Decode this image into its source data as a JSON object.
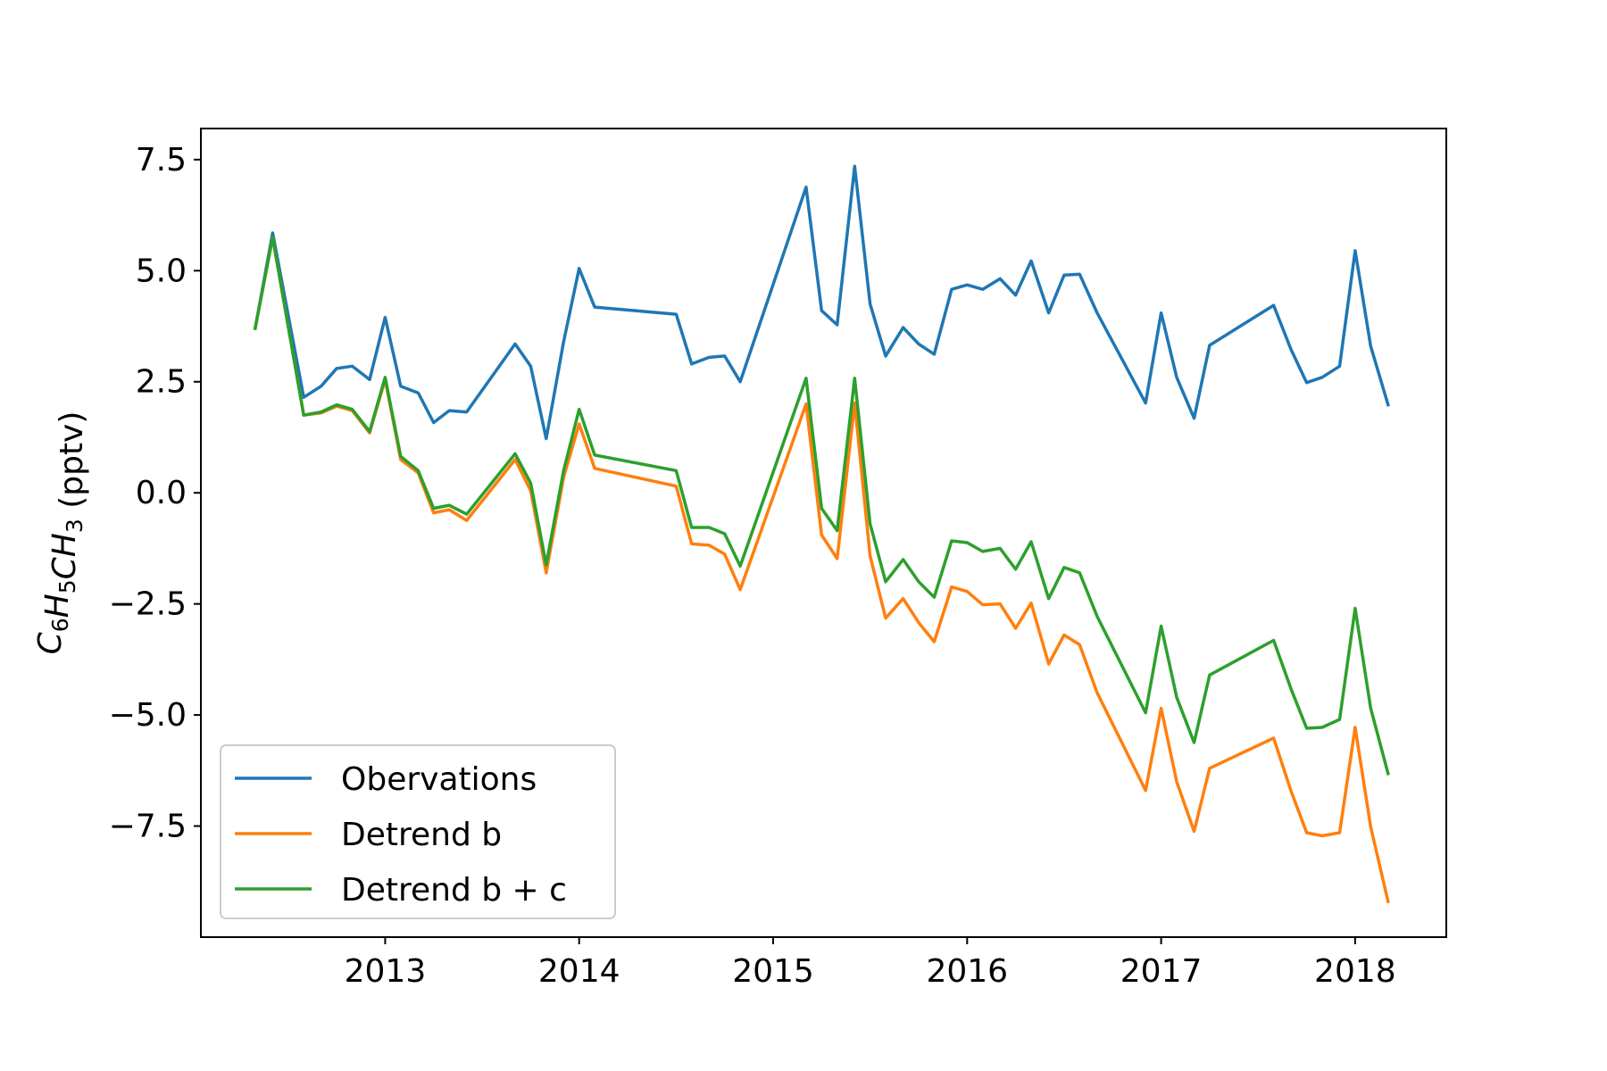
{
  "chart_data": {
    "type": "line",
    "title": "",
    "xlabel": "",
    "ylabel": {
      "parts": [
        {
          "t": "C",
          "s": "6"
        },
        {
          "t": "H",
          "s": "5"
        },
        {
          "t": "CH",
          "s": "3"
        }
      ],
      "unit": " (pptv)"
    },
    "xlim": [
      2012.05,
      2018.47
    ],
    "ylim": [
      -10.0,
      8.2
    ],
    "x_ticks": [
      2013,
      2014,
      2015,
      2016,
      2017,
      2018
    ],
    "x_tick_labels": [
      "2013",
      "2014",
      "2015",
      "2016",
      "2017",
      "2018"
    ],
    "y_ticks": [
      7.5,
      5.0,
      2.5,
      0.0,
      -2.5,
      -5.0,
      -7.5
    ],
    "y_tick_labels": [
      "7.5",
      "5.0",
      "2.5",
      "0.0",
      "−2.5",
      "−5.0",
      "−7.5"
    ],
    "grid": false,
    "legend_position": "lower-left",
    "x": [
      2012.33,
      2012.42,
      2012.58,
      2012.67,
      2012.75,
      2012.83,
      2012.92,
      2013.0,
      2013.08,
      2013.17,
      2013.25,
      2013.33,
      2013.42,
      2013.67,
      2013.75,
      2013.83,
      2013.92,
      2014.0,
      2014.08,
      2014.5,
      2014.58,
      2014.67,
      2014.75,
      2014.83,
      2015.17,
      2015.25,
      2015.33,
      2015.42,
      2015.5,
      2015.58,
      2015.67,
      2015.75,
      2015.83,
      2015.92,
      2016.0,
      2016.08,
      2016.17,
      2016.25,
      2016.33,
      2016.42,
      2016.5,
      2016.58,
      2016.67,
      2016.92,
      2017.0,
      2017.08,
      2017.17,
      2017.25,
      2017.58,
      2017.67,
      2017.75,
      2017.83,
      2017.92,
      2018.0,
      2018.08,
      2018.17
    ],
    "series": [
      {
        "name": "Obervations",
        "color": "#1f77b4",
        "values": [
          3.7,
          5.85,
          2.15,
          2.4,
          2.8,
          2.85,
          2.55,
          3.95,
          2.4,
          2.25,
          1.58,
          1.85,
          1.82,
          3.35,
          2.85,
          1.22,
          3.4,
          5.05,
          4.18,
          4.02,
          2.9,
          3.05,
          3.08,
          2.5,
          6.88,
          4.1,
          3.78,
          7.35,
          4.25,
          3.08,
          3.72,
          3.35,
          3.12,
          4.58,
          4.68,
          4.58,
          4.82,
          4.45,
          5.22,
          4.05,
          4.9,
          4.92,
          4.05,
          2.02,
          4.05,
          2.6,
          1.68,
          3.32,
          4.22,
          3.22,
          2.48,
          2.6,
          2.85,
          5.45,
          3.3,
          1.98
        ]
      },
      {
        "name": "Detrend b",
        "color": "#ff7f0e",
        "values": [
          3.7,
          5.75,
          1.75,
          1.8,
          1.95,
          1.85,
          1.35,
          2.55,
          0.75,
          0.45,
          -0.45,
          -0.38,
          -0.62,
          0.75,
          0.05,
          -1.8,
          0.35,
          1.55,
          0.55,
          0.15,
          -1.15,
          -1.18,
          -1.38,
          -2.18,
          2.0,
          -0.95,
          -1.48,
          2.02,
          -1.42,
          -2.82,
          -2.38,
          -2.92,
          -3.35,
          -2.12,
          -2.22,
          -2.52,
          -2.5,
          -3.05,
          -2.48,
          -3.85,
          -3.2,
          -3.42,
          -4.5,
          -6.7,
          -4.85,
          -6.5,
          -7.62,
          -6.2,
          -5.52,
          -6.72,
          -7.65,
          -7.72,
          -7.65,
          -5.28,
          -7.52,
          -9.2
        ]
      },
      {
        "name": "Detrend b + c",
        "color": "#2ca02c",
        "values": [
          3.7,
          5.75,
          1.75,
          1.82,
          1.98,
          1.88,
          1.38,
          2.6,
          0.82,
          0.5,
          -0.35,
          -0.28,
          -0.48,
          0.88,
          0.22,
          -1.62,
          0.5,
          1.88,
          0.85,
          0.5,
          -0.78,
          -0.78,
          -0.92,
          -1.65,
          2.58,
          -0.35,
          -0.85,
          2.58,
          -0.7,
          -2.0,
          -1.5,
          -2.0,
          -2.35,
          -1.08,
          -1.12,
          -1.32,
          -1.25,
          -1.72,
          -1.1,
          -2.38,
          -1.68,
          -1.8,
          -2.78,
          -4.95,
          -3.0,
          -4.6,
          -5.62,
          -4.1,
          -3.32,
          -4.42,
          -5.3,
          -5.28,
          -5.1,
          -2.6,
          -4.85,
          -6.32
        ]
      }
    ]
  }
}
